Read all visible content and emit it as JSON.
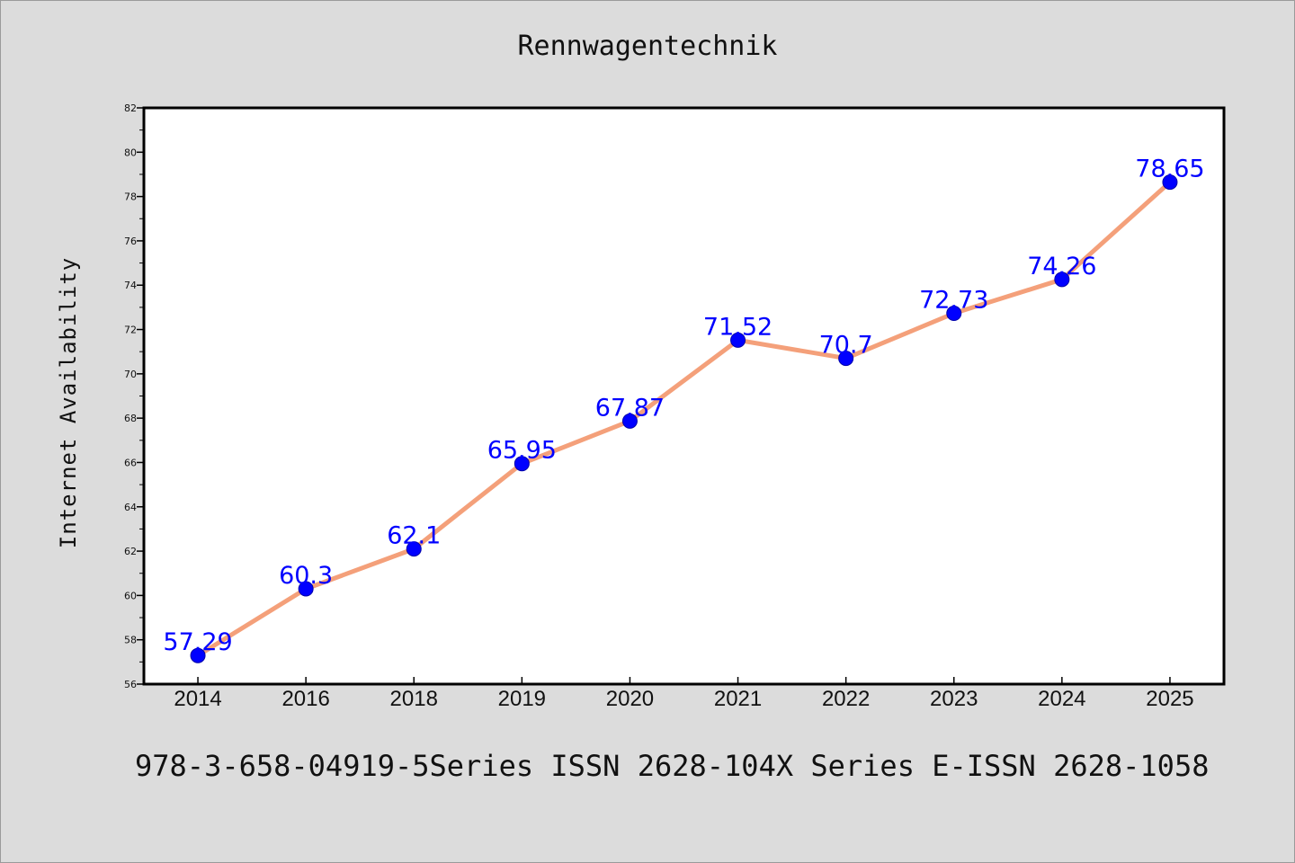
{
  "chart_data": {
    "type": "line",
    "title": "Rennwagentechnik",
    "xlabel": "",
    "ylabel": "Internet Availability",
    "categories": [
      "2014",
      "2016",
      "2018",
      "2019",
      "2020",
      "2021",
      "2022",
      "2023",
      "2024",
      "2025"
    ],
    "series": [
      {
        "values": [
          57.29,
          60.3,
          62.1,
          65.95,
          67.87,
          71.52,
          70.7,
          72.73,
          74.26,
          78.65
        ]
      }
    ],
    "ylim": [
      56,
      82
    ],
    "yticks": [
      "56",
      "58",
      "60",
      "62",
      "64",
      "66",
      "68",
      "70",
      "72",
      "74",
      "76",
      "78",
      "80",
      "82"
    ],
    "data_labels": [
      "57.29",
      "60.3",
      "62.1",
      "65.95",
      "67.87",
      "71.52",
      "70.7",
      "72.73",
      "74.26",
      "78.65"
    ],
    "grid": false,
    "colors": {
      "line": "#f4a07a",
      "marker": "#0000ff",
      "label": "#0000ff",
      "plot_bg": "#ffffff"
    }
  },
  "footer_text": "978-3-658-04919-5Series ISSN 2628-104X Series E-ISSN 2628-1058"
}
